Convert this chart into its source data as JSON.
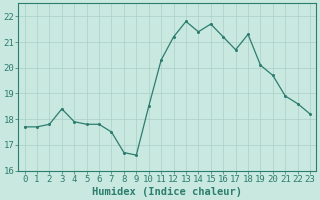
{
  "x": [
    0,
    1,
    2,
    3,
    4,
    5,
    6,
    7,
    8,
    9,
    10,
    11,
    12,
    13,
    14,
    15,
    16,
    17,
    18,
    19,
    20,
    21,
    22,
    23
  ],
  "y": [
    17.7,
    17.7,
    17.8,
    18.4,
    17.9,
    17.8,
    17.8,
    17.5,
    16.7,
    16.6,
    18.5,
    20.3,
    21.2,
    21.8,
    21.4,
    21.7,
    21.2,
    20.7,
    21.3,
    20.1,
    19.7,
    18.9,
    18.6,
    18.2
  ],
  "line_color": "#2d7d6e",
  "marker": "o",
  "marker_size": 2.2,
  "bg_color": "#c8e8e0",
  "grid_color": "#aacfc8",
  "xlabel": "Humidex (Indice chaleur)",
  "xlim": [
    -0.5,
    23.5
  ],
  "ylim": [
    16,
    22.5
  ],
  "yticks": [
    16,
    17,
    18,
    19,
    20,
    21,
    22
  ],
  "xticks": [
    0,
    1,
    2,
    3,
    4,
    5,
    6,
    7,
    8,
    9,
    10,
    11,
    12,
    13,
    14,
    15,
    16,
    17,
    18,
    19,
    20,
    21,
    22,
    23
  ],
  "tick_color": "#2d7d6e",
  "label_color": "#2d7d6e",
  "font_size": 6.5,
  "xlabel_fontsize": 7.5
}
